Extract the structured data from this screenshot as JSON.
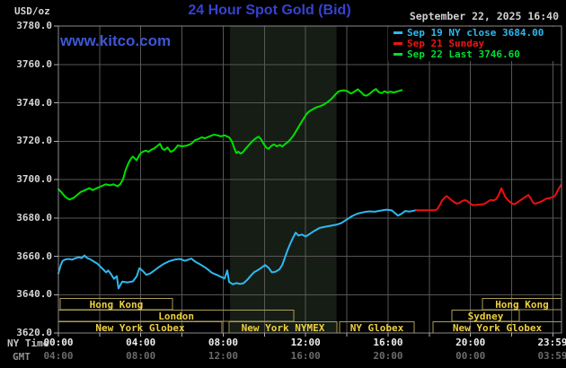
{
  "header": {
    "unit": "USD/oz",
    "title": "24 Hour Spot Gold (Bid)",
    "timestamp": "September 22, 2025 16:40",
    "watermark": "www.kitco.com"
  },
  "colors": {
    "background": "#000000",
    "grid": "#565656",
    "frame": "#8a8a8a",
    "title_blue": "#3742d2",
    "session_border": "#ad9d55",
    "session_text": "#eecf3f",
    "band": "#151d15",
    "blue_series": "#2eb8f0",
    "red_series": "#ee0f0f",
    "green_series": "#00e000"
  },
  "chart_data": {
    "type": "line",
    "title": "24 Hour Spot Gold (Bid)",
    "ylabel": "USD/oz",
    "ylim": [
      3620,
      3780
    ],
    "ytick_step": 20,
    "grid": true,
    "x_axis": {
      "ny_label": "NY Time",
      "gmt_label": "GMT",
      "tick_minutes": [
        0,
        240,
        480,
        720,
        960,
        1200,
        1439
      ],
      "ny_ticks": [
        "00:00",
        "04:00",
        "08:00",
        "12:00",
        "16:00",
        "20:00",
        "23:59"
      ],
      "gmt_ticks": [
        "04:00",
        "08:00",
        "12:00",
        "16:00",
        "20:00",
        "00:00",
        "03:59"
      ]
    },
    "legend": [
      {
        "label": "Sep 19 NY close 3684.00",
        "color": "#2eb8f0"
      },
      {
        "label": "Sep 21 Sunday",
        "color": "#ee1414"
      },
      {
        "label": "Sep 22 Last 3746.60",
        "color": "#00dd33"
      }
    ],
    "highlight_band": {
      "start_min": 500,
      "end_min": 810
    },
    "sessions": [
      {
        "row": 0,
        "label": "Hong Kong",
        "start_min": 5,
        "end_min": 332
      },
      {
        "row": 0,
        "label": "Hong Kong",
        "start_min": 1235,
        "end_min": 1465
      },
      {
        "row": 1,
        "label": "London",
        "start_min": 0,
        "end_min": 686
      },
      {
        "row": 1,
        "label": "Sydney",
        "start_min": 1146,
        "end_min": 1342
      },
      {
        "row": 2,
        "label": "New York Globex",
        "start_min": 0,
        "end_min": 476
      },
      {
        "row": 2,
        "label": "New York NYMEX",
        "start_min": 497,
        "end_min": 811
      },
      {
        "row": 2,
        "label": "NY Globex",
        "start_min": 819,
        "end_min": 1036
      },
      {
        "row": 2,
        "label": "New York Globex",
        "start_min": 1091,
        "end_min": 1465
      }
    ],
    "series": [
      {
        "name": "Sep 19 NY close",
        "color": "#2eb8f0",
        "points": [
          [
            0,
            3651
          ],
          [
            6,
            3655
          ],
          [
            12,
            3657.5
          ],
          [
            20,
            3658.3
          ],
          [
            30,
            3658.6
          ],
          [
            40,
            3658.2
          ],
          [
            50,
            3659
          ],
          [
            60,
            3659.5
          ],
          [
            68,
            3659
          ],
          [
            76,
            3660.4
          ],
          [
            84,
            3659
          ],
          [
            92,
            3658.5
          ],
          [
            100,
            3657.6
          ],
          [
            113,
            3656.2
          ],
          [
            122,
            3654.6
          ],
          [
            130,
            3653.2
          ],
          [
            139,
            3651.6
          ],
          [
            145,
            3652.6
          ],
          [
            152,
            3651
          ],
          [
            162,
            3648.2
          ],
          [
            170,
            3649.6
          ],
          [
            175,
            3643.2
          ],
          [
            186,
            3646.8
          ],
          [
            201,
            3646.4
          ],
          [
            217,
            3646.9
          ],
          [
            228,
            3649.5
          ],
          [
            236,
            3653.8
          ],
          [
            246,
            3652.3
          ],
          [
            256,
            3650.3
          ],
          [
            267,
            3651
          ],
          [
            277,
            3652.3
          ],
          [
            290,
            3654
          ],
          [
            306,
            3656
          ],
          [
            322,
            3657.4
          ],
          [
            338,
            3658.2
          ],
          [
            353,
            3658.6
          ],
          [
            369,
            3657.6
          ],
          [
            387,
            3658.8
          ],
          [
            400,
            3657
          ],
          [
            416,
            3655.4
          ],
          [
            432,
            3653.6
          ],
          [
            447,
            3651.4
          ],
          [
            461,
            3650.3
          ],
          [
            474,
            3649.2
          ],
          [
            484,
            3648.4
          ],
          [
            492,
            3652.6
          ],
          [
            497,
            3646.6
          ],
          [
            508,
            3645.4
          ],
          [
            518,
            3646
          ],
          [
            529,
            3645.6
          ],
          [
            539,
            3645.9
          ],
          [
            550,
            3647.7
          ],
          [
            560,
            3649.8
          ],
          [
            570,
            3651.7
          ],
          [
            581,
            3652.8
          ],
          [
            591,
            3654
          ],
          [
            602,
            3655.4
          ],
          [
            612,
            3654
          ],
          [
            622,
            3651.6
          ],
          [
            633,
            3652
          ],
          [
            644,
            3653.2
          ],
          [
            652,
            3655.5
          ],
          [
            659,
            3659
          ],
          [
            667,
            3663
          ],
          [
            675,
            3666.5
          ],
          [
            683,
            3669.5
          ],
          [
            691,
            3672.3
          ],
          [
            699,
            3670.8
          ],
          [
            709,
            3671.3
          ],
          [
            720,
            3670.3
          ],
          [
            733,
            3671.8
          ],
          [
            746,
            3673.3
          ],
          [
            761,
            3674.8
          ],
          [
            777,
            3675.4
          ],
          [
            793,
            3675.9
          ],
          [
            809,
            3676.4
          ],
          [
            824,
            3677.3
          ],
          [
            840,
            3679.2
          ],
          [
            856,
            3681
          ],
          [
            871,
            3682.2
          ],
          [
            890,
            3683
          ],
          [
            905,
            3683.4
          ],
          [
            921,
            3683.2
          ],
          [
            939,
            3683.8
          ],
          [
            955,
            3684.3
          ],
          [
            971,
            3683.9
          ],
          [
            981,
            3682.4
          ],
          [
            989,
            3681.2
          ],
          [
            1000,
            3682.2
          ],
          [
            1010,
            3683.6
          ],
          [
            1023,
            3683.3
          ],
          [
            1034,
            3683.7
          ],
          [
            1042,
            3684.0
          ]
        ]
      },
      {
        "name": "Sep 21 Sunday",
        "color": "#ee0f0f",
        "points": [
          [
            1042,
            3684
          ],
          [
            1060,
            3684
          ],
          [
            1080,
            3684
          ],
          [
            1094,
            3684
          ],
          [
            1102,
            3684.3
          ],
          [
            1110,
            3686.5
          ],
          [
            1118,
            3689.3
          ],
          [
            1126,
            3690.8
          ],
          [
            1131,
            3691.4
          ],
          [
            1138,
            3690.3
          ],
          [
            1145,
            3689.2
          ],
          [
            1152,
            3688.3
          ],
          [
            1160,
            3687.4
          ],
          [
            1168,
            3687.8
          ],
          [
            1176,
            3688.8
          ],
          [
            1183,
            3689.3
          ],
          [
            1190,
            3688.9
          ],
          [
            1198,
            3687.6
          ],
          [
            1207,
            3686.6
          ],
          [
            1215,
            3686.7
          ],
          [
            1224,
            3686.9
          ],
          [
            1233,
            3687
          ],
          [
            1242,
            3687.4
          ],
          [
            1250,
            3688.4
          ],
          [
            1259,
            3689.4
          ],
          [
            1266,
            3689.1
          ],
          [
            1274,
            3689.6
          ],
          [
            1281,
            3691.5
          ],
          [
            1287,
            3694
          ],
          [
            1290,
            3695.4
          ],
          [
            1295,
            3693.5
          ],
          [
            1301,
            3691
          ],
          [
            1308,
            3689.5
          ],
          [
            1315,
            3688.3
          ],
          [
            1322,
            3687.4
          ],
          [
            1329,
            3687.2
          ],
          [
            1336,
            3688
          ],
          [
            1343,
            3688.9
          ],
          [
            1350,
            3689.7
          ],
          [
            1357,
            3690.6
          ],
          [
            1364,
            3691.4
          ],
          [
            1369,
            3691.9
          ],
          [
            1374,
            3690.6
          ],
          [
            1379,
            3689
          ],
          [
            1384,
            3687.6
          ],
          [
            1390,
            3687.4
          ],
          [
            1396,
            3687.9
          ],
          [
            1402,
            3688.2
          ],
          [
            1408,
            3688.7
          ],
          [
            1414,
            3689.3
          ],
          [
            1420,
            3689.9
          ],
          [
            1426,
            3690.3
          ],
          [
            1430,
            3690.2
          ],
          [
            1438,
            3690.8
          ],
          [
            1446,
            3691.5
          ],
          [
            1452,
            3693.5
          ],
          [
            1458,
            3695.5
          ],
          [
            1463,
            3697
          ]
        ]
      },
      {
        "name": "Sep 22 Last",
        "color": "#00e000",
        "points": [
          [
            0,
            3695
          ],
          [
            8,
            3693.5
          ],
          [
            20,
            3691
          ],
          [
            32,
            3689.5
          ],
          [
            45,
            3690.5
          ],
          [
            55,
            3692
          ],
          [
            65,
            3693.5
          ],
          [
            78,
            3694.5
          ],
          [
            90,
            3695.5
          ],
          [
            100,
            3694.5
          ],
          [
            112,
            3695.5
          ],
          [
            125,
            3696.5
          ],
          [
            138,
            3697.5
          ],
          [
            150,
            3697
          ],
          [
            160,
            3697.5
          ],
          [
            172,
            3696.5
          ],
          [
            180,
            3697.5
          ],
          [
            188,
            3700
          ],
          [
            196,
            3705
          ],
          [
            205,
            3709
          ],
          [
            212,
            3711
          ],
          [
            217,
            3712
          ],
          [
            228,
            3710
          ],
          [
            235,
            3712.5
          ],
          [
            241,
            3714
          ],
          [
            250,
            3714.8
          ],
          [
            256,
            3715
          ],
          [
            262,
            3714.4
          ],
          [
            270,
            3715.5
          ],
          [
            280,
            3716.3
          ],
          [
            288,
            3717.5
          ],
          [
            296,
            3718.6
          ],
          [
            303,
            3716
          ],
          [
            309,
            3715.4
          ],
          [
            318,
            3716.7
          ],
          [
            327,
            3714.4
          ],
          [
            337,
            3715.4
          ],
          [
            348,
            3717.8
          ],
          [
            360,
            3717.3
          ],
          [
            374,
            3717.7
          ],
          [
            387,
            3718.6
          ],
          [
            398,
            3720.5
          ],
          [
            406,
            3721
          ],
          [
            417,
            3722
          ],
          [
            427,
            3721.5
          ],
          [
            440,
            3722.5
          ],
          [
            453,
            3723.4
          ],
          [
            464,
            3723
          ],
          [
            473,
            3722.5
          ],
          [
            484,
            3723
          ],
          [
            497,
            3722
          ],
          [
            505,
            3720
          ],
          [
            512,
            3716.5
          ],
          [
            518,
            3713.8
          ],
          [
            524,
            3714.5
          ],
          [
            530,
            3713.5
          ],
          [
            536,
            3714
          ],
          [
            545,
            3716
          ],
          [
            555,
            3718
          ],
          [
            565,
            3720
          ],
          [
            575,
            3721.5
          ],
          [
            583,
            3722.3
          ],
          [
            590,
            3721
          ],
          [
            598,
            3718.5
          ],
          [
            606,
            3716.5
          ],
          [
            612,
            3716
          ],
          [
            620,
            3717.5
          ],
          [
            628,
            3718.3
          ],
          [
            636,
            3717.3
          ],
          [
            645,
            3718
          ],
          [
            652,
            3717.2
          ],
          [
            660,
            3718.5
          ],
          [
            668,
            3719.5
          ],
          [
            676,
            3721
          ],
          [
            685,
            3723
          ],
          [
            693,
            3725.5
          ],
          [
            700,
            3727.5
          ],
          [
            708,
            3730
          ],
          [
            715,
            3732
          ],
          [
            722,
            3734
          ],
          [
            730,
            3735.5
          ],
          [
            740,
            3736.5
          ],
          [
            750,
            3737.5
          ],
          [
            762,
            3738.2
          ],
          [
            773,
            3739
          ],
          [
            785,
            3740.5
          ],
          [
            795,
            3742
          ],
          [
            805,
            3744
          ],
          [
            815,
            3745.8
          ],
          [
            823,
            3746.3
          ],
          [
            832,
            3746.5
          ],
          [
            842,
            3746
          ],
          [
            852,
            3744.8
          ],
          [
            862,
            3745.8
          ],
          [
            872,
            3747
          ],
          [
            880,
            3745.8
          ],
          [
            890,
            3744
          ],
          [
            898,
            3743.7
          ],
          [
            907,
            3744.8
          ],
          [
            916,
            3746.2
          ],
          [
            925,
            3747.2
          ],
          [
            933,
            3745.5
          ],
          [
            941,
            3745
          ],
          [
            950,
            3746
          ],
          [
            958,
            3745.3
          ],
          [
            967,
            3745.8
          ],
          [
            976,
            3745.4
          ],
          [
            985,
            3745.8
          ],
          [
            993,
            3746.2
          ],
          [
            1000,
            3746.6
          ]
        ]
      }
    ]
  }
}
